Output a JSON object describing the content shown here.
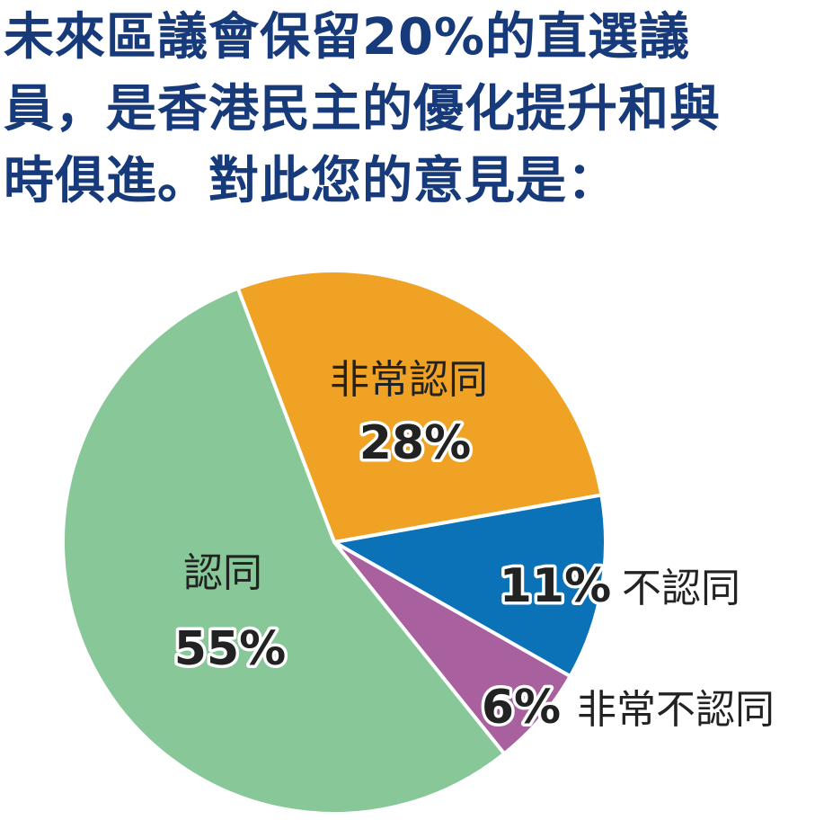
{
  "chart_data": {
    "type": "pie",
    "title": "未來區議會保留20%的直選議員，是香港民主的優化提升和與時俱進。對此您的意見是：",
    "categories": [
      "非常認同",
      "不認同",
      "非常不認同",
      "認同"
    ],
    "values": [
      28,
      11,
      6,
      55
    ],
    "value_labels": [
      "28%",
      "11%",
      "6%",
      "55%"
    ],
    "colors": [
      "#f0a224",
      "#0b72b8",
      "#a8609f",
      "#88c898"
    ]
  }
}
